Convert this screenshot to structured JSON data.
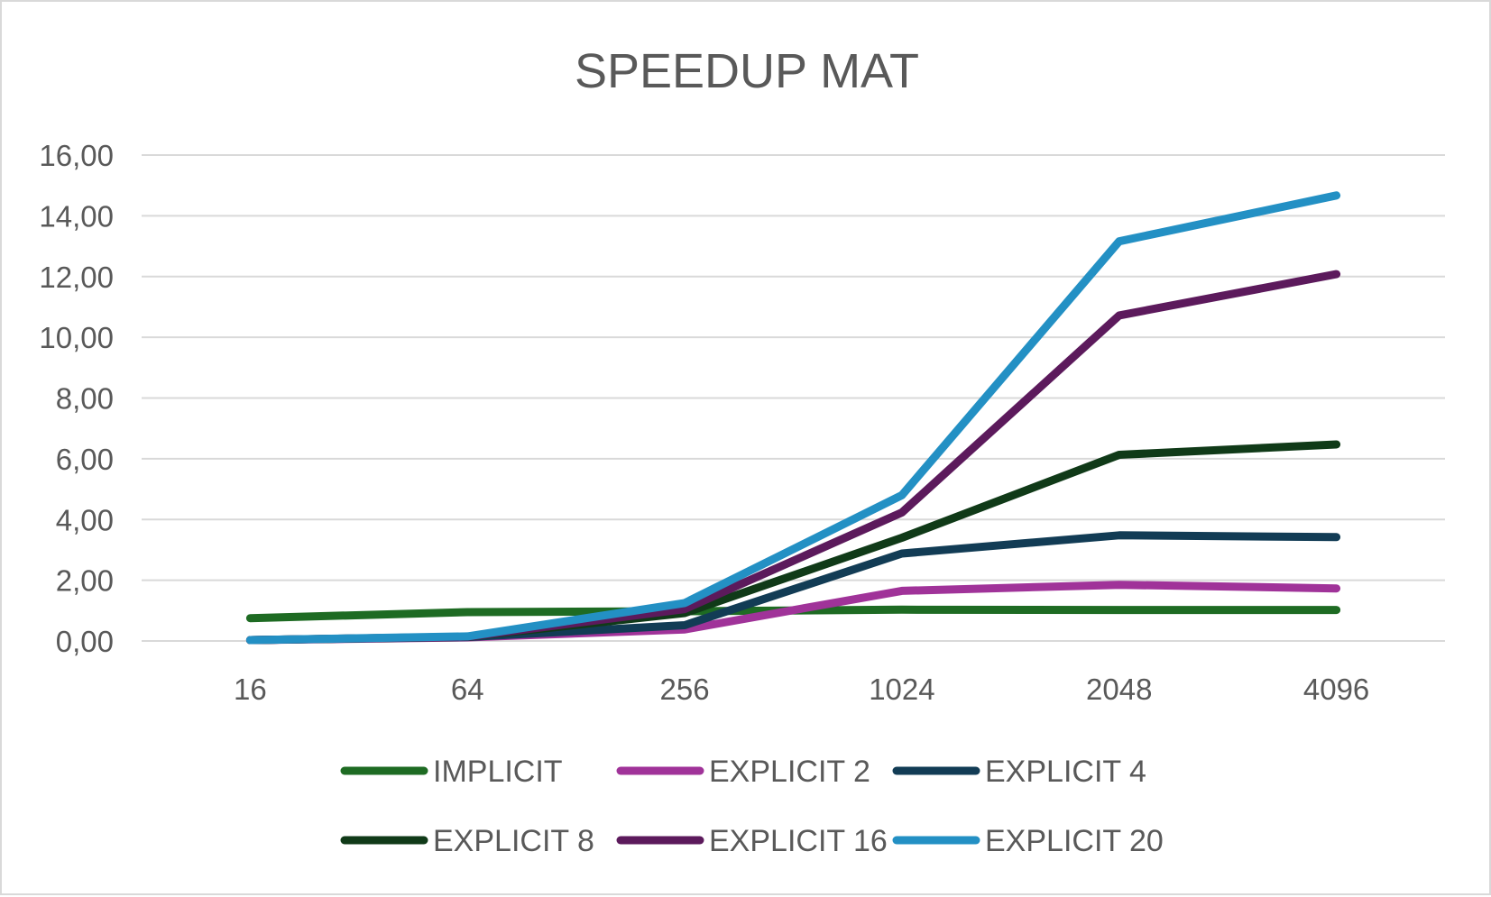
{
  "chart_data": {
    "type": "line",
    "title": "SPEEDUP MAT",
    "xlabel": "",
    "ylabel": "",
    "categories": [
      "16",
      "64",
      "256",
      "1024",
      "2048",
      "4096"
    ],
    "ylim": [
      0,
      16
    ],
    "y_ticks": [
      "0,00",
      "2,00",
      "4,00",
      "6,00",
      "8,00",
      "10,00",
      "12,00",
      "14,00",
      "16,00"
    ],
    "grid": true,
    "legend_position": "bottom",
    "series": [
      {
        "name": "IMPLICIT",
        "color": "#1e6b23",
        "values": [
          0.75,
          0.95,
          0.98,
          1.03,
          1.02,
          1.02
        ]
      },
      {
        "name": "EXPLICIT 2",
        "color": "#a03399",
        "values": [
          0.03,
          0.12,
          0.38,
          1.65,
          1.85,
          1.73
        ]
      },
      {
        "name": "EXPLICIT 4",
        "color": "#123c55",
        "values": [
          0.03,
          0.13,
          0.52,
          2.88,
          3.48,
          3.42
        ]
      },
      {
        "name": "EXPLICIT 8",
        "color": "#103a18",
        "values": [
          0.03,
          0.14,
          0.92,
          3.4,
          6.13,
          6.47
        ]
      },
      {
        "name": "EXPLICIT 16",
        "color": "#5c1a5c",
        "values": [
          0.03,
          0.14,
          1.05,
          4.23,
          10.72,
          12.08
        ]
      },
      {
        "name": "EXPLICIT 20",
        "color": "#2390c4",
        "values": [
          0.03,
          0.15,
          1.25,
          4.8,
          13.16,
          14.67
        ]
      }
    ]
  }
}
